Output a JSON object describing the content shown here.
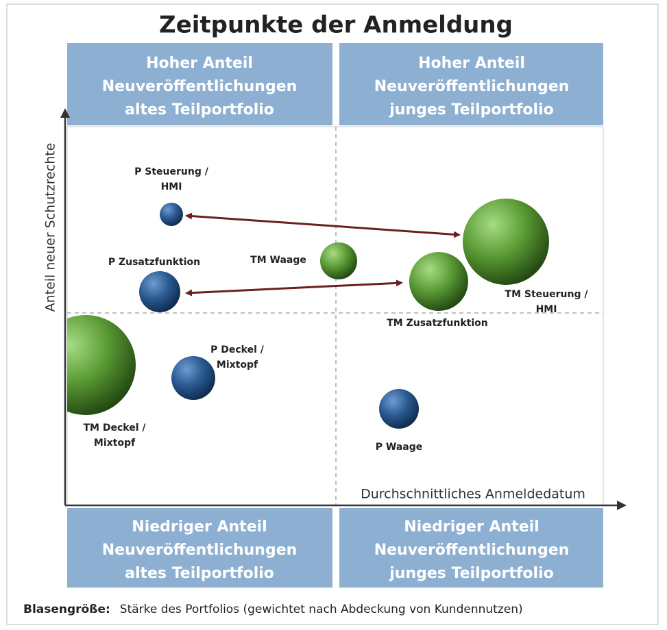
{
  "title": "Zeitpunkte der Anmeldung",
  "quadrants": [
    {
      "lines": [
        "Hoher Anteil",
        "Neuveröffentlichungen",
        "altes Teilportfolio"
      ]
    },
    {
      "lines": [
        "Hoher Anteil",
        "Neuveröffentlichungen",
        "junges Teilportfolio"
      ]
    },
    {
      "lines": [
        "Niedriger Anteil",
        "Neuveröffentlichungen",
        "altes Teilportfolio"
      ]
    },
    {
      "lines": [
        "Niedriger Anteil",
        "Neuveröffentlichungen",
        "junges Teilportfolio"
      ]
    }
  ],
  "y_axis_label": "Anteil neuer Schutzrechte",
  "x_axis_label": "Durchschnittliches Anmeldedatum",
  "bubbles": [
    {
      "label_lines": [
        "P Steuerung /",
        "HMI"
      ]
    },
    {
      "label_lines": [
        "P Zusatzfunktion"
      ]
    },
    {
      "label_lines": [
        "P Deckel /",
        "Mixtopf"
      ]
    },
    {
      "label_lines": [
        "P Waage"
      ]
    },
    {
      "label_lines": [
        "TM Waage"
      ]
    },
    {
      "label_lines": [
        "TM Zusatzfunktion"
      ]
    },
    {
      "label_lines": [
        "TM Steuerung /",
        "HMI"
      ]
    },
    {
      "label_lines": [
        "TM Deckel /",
        "Mixtopf"
      ]
    }
  ],
  "legend": {
    "key": "Blasengröße:",
    "text": "Stärke des Portfolios (gewichtet nach Abdeckung von Kundennutzen)"
  }
}
